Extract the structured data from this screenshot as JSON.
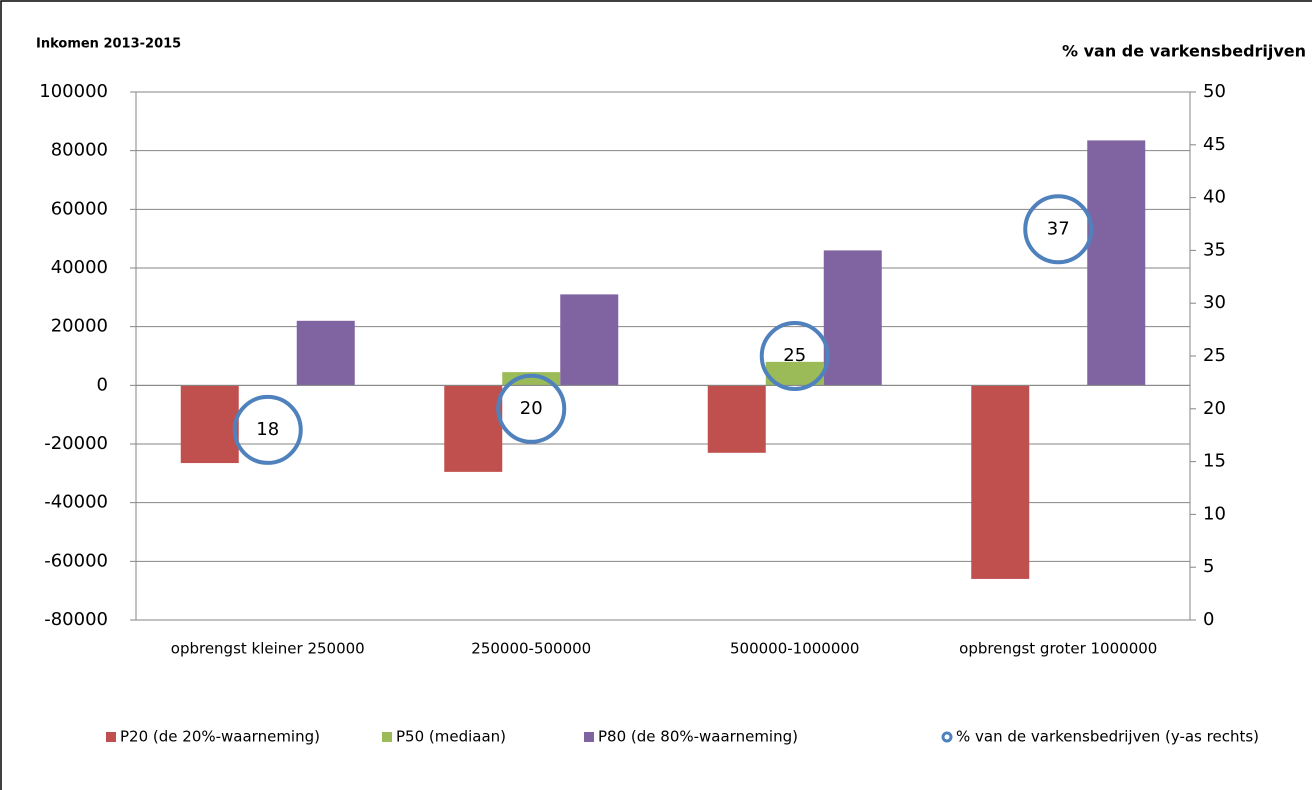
{
  "chart_data": {
    "type": "bar",
    "title": "Inkomen 2013-2015",
    "y2label": "% van de varkensbedrijven",
    "categories": [
      "opbrengst kleiner 250000",
      "250000-500000",
      "500000-1000000",
      "opbrengst groter 1000000"
    ],
    "series": [
      {
        "name": "P20 (de 20%-waarneming)",
        "color": "#c0504d",
        "values": [
          -26500,
          -29500,
          -23000,
          -66000
        ]
      },
      {
        "name": "P50 (mediaan)",
        "color": "#9bbb59",
        "values": [
          0,
          4500,
          8000,
          0
        ]
      },
      {
        "name": "P80 (de 80%-waarneming)",
        "color": "#8064a2",
        "values": [
          22000,
          31000,
          46000,
          83500
        ]
      },
      {
        "name": "% van de varkensbedrijven (y-as rechts)",
        "color": "#4f81bd",
        "type": "scatter",
        "axis": "y2",
        "values": [
          18,
          20,
          25,
          37
        ]
      }
    ],
    "ylim": [
      -80000,
      100000
    ],
    "yticks": [
      -80000,
      -60000,
      -40000,
      -20000,
      0,
      20000,
      40000,
      60000,
      80000,
      100000
    ],
    "y2lim": [
      0,
      50
    ],
    "y2ticks": [
      0,
      5,
      10,
      15,
      20,
      25,
      30,
      35,
      40,
      45,
      50
    ],
    "grid": true,
    "legend": "bottom"
  }
}
